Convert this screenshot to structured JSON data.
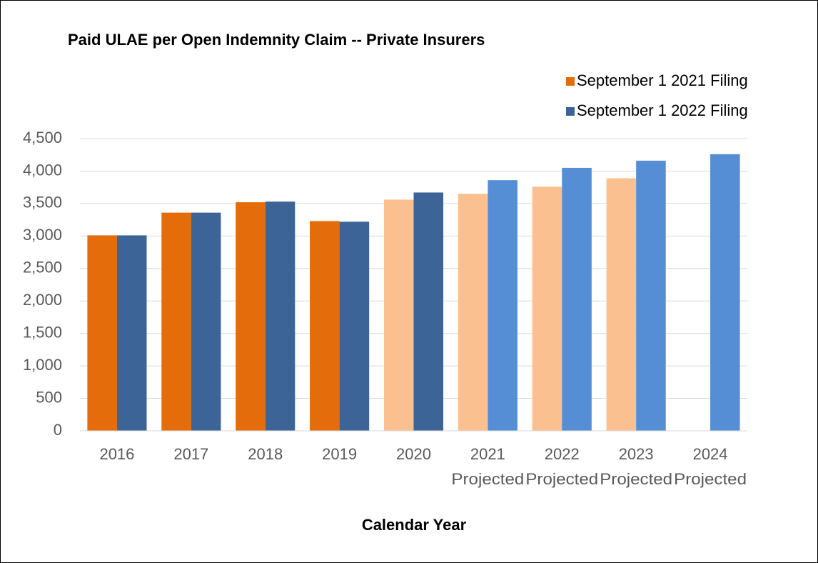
{
  "chart_data": {
    "type": "bar",
    "title": "Paid ULAE per Open Indemnity Claim -- Private Insurers",
    "x_label": "Calendar Year",
    "categories": [
      [
        "2016"
      ],
      [
        "2017"
      ],
      [
        "2018"
      ],
      [
        "2019"
      ],
      [
        "2020"
      ],
      [
        "2021",
        "Projected"
      ],
      [
        "2022",
        "Projected"
      ],
      [
        "2023",
        "Projected"
      ],
      [
        "2024",
        "Projected"
      ]
    ],
    "series": [
      {
        "name": "September 1 2021 Filing",
        "color": "#e46c0a",
        "colors": [
          "#e46c0a",
          "#e46c0a",
          "#e46c0a",
          "#e46c0a",
          "#fac090",
          "#fac090",
          "#fac090",
          "#fac090",
          "#fac090"
        ],
        "values": [
          3010,
          3360,
          3520,
          3230,
          3560,
          3650,
          3760,
          3890,
          null
        ]
      },
      {
        "name": "September 1 2022 Filing",
        "color": "#3c6496",
        "colors": [
          "#3c6496",
          "#3c6496",
          "#3c6496",
          "#3c6496",
          "#3c6496",
          "#558ed5",
          "#558ed5",
          "#558ed5",
          "#558ed5"
        ],
        "values": [
          3010,
          3360,
          3530,
          3220,
          3670,
          3860,
          4050,
          4160,
          4260
        ]
      }
    ],
    "ylim": [
      0,
      4500
    ],
    "yticks": [
      0,
      500,
      {
        "value": 1000,
        "label": "1,000"
      },
      {
        "value": 1500,
        "label": "1,500"
      },
      {
        "value": 2000,
        "label": "2,000"
      },
      {
        "value": 2500,
        "label": "2,500"
      },
      {
        "value": 3000,
        "label": "3,000"
      },
      {
        "value": 3500,
        "label": "3,500"
      },
      {
        "value": 4000,
        "label": "4,000"
      },
      {
        "value": 4500,
        "label": "4,500"
      }
    ],
    "grid": true,
    "legend": "top-right"
  }
}
